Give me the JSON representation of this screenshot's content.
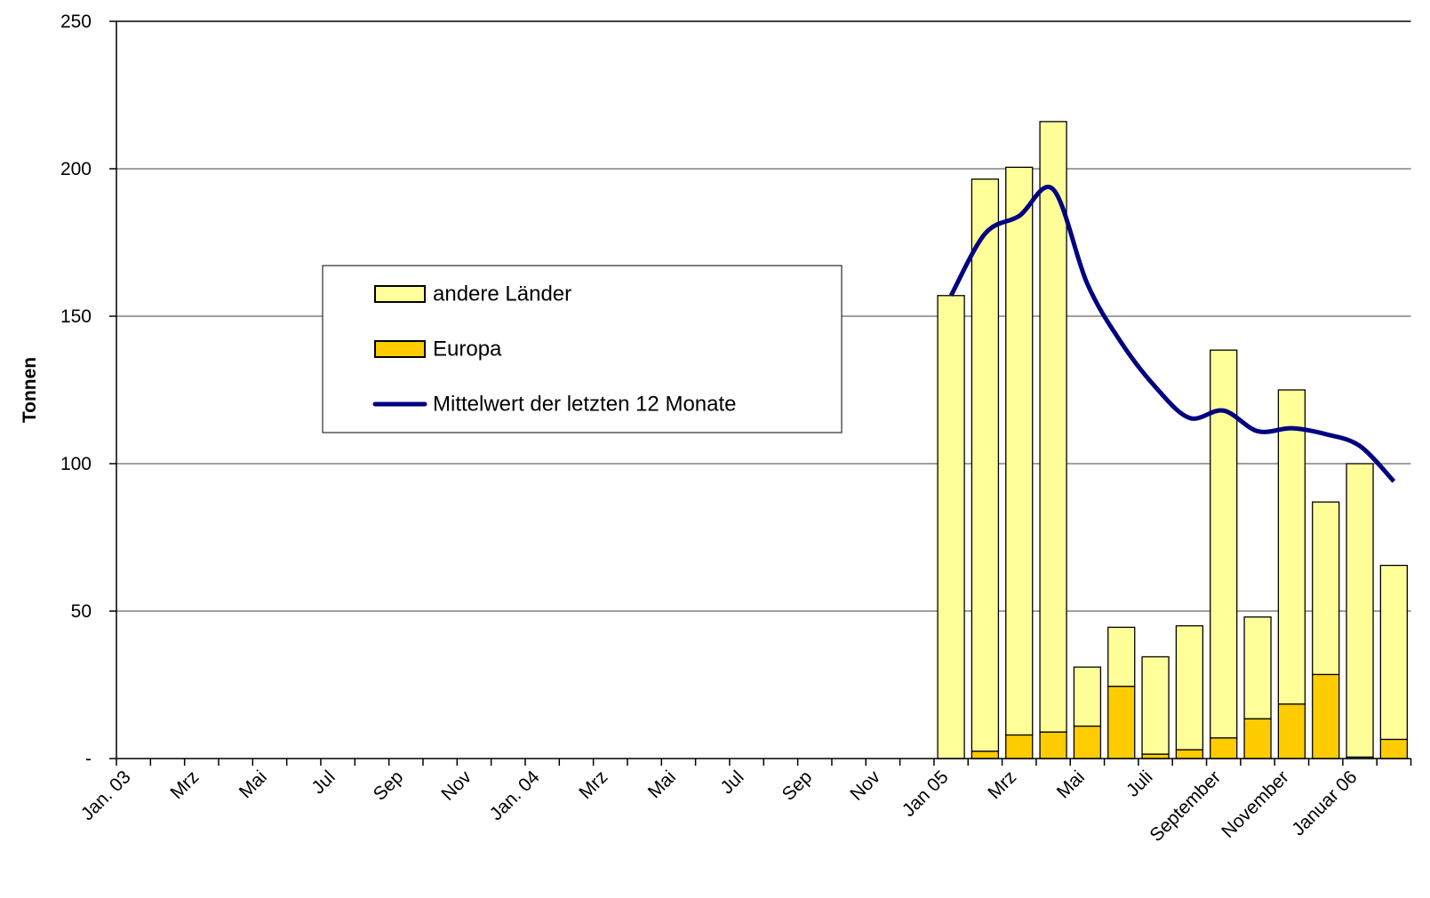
{
  "chart_data": {
    "type": "bar",
    "y_label": "Tonnen",
    "categories": [
      "Jan. 03",
      null,
      "Mrz",
      null,
      "Mai",
      null,
      "Jul",
      null,
      "Sep",
      null,
      "Nov",
      null,
      "Jan. 04",
      null,
      "Mrz",
      null,
      "Mai",
      null,
      "Jul",
      null,
      "Sep",
      null,
      "Nov",
      null,
      "Jan 05",
      null,
      "Mrz",
      null,
      "Mai",
      null,
      "Juli",
      null,
      "September",
      null,
      "November",
      null,
      "Januar 06",
      null
    ],
    "series": [
      {
        "name": "andere Länder",
        "type": "bar",
        "color": "#ffff99",
        "values": [
          null,
          null,
          null,
          null,
          null,
          null,
          null,
          null,
          null,
          null,
          null,
          null,
          null,
          null,
          null,
          null,
          null,
          null,
          null,
          null,
          null,
          null,
          null,
          null,
          157,
          194,
          192.5,
          207,
          20,
          20,
          33,
          42,
          131.5,
          34.5,
          106.5,
          58.5,
          99.5,
          59
        ]
      },
      {
        "name": "Europa",
        "type": "bar",
        "color": "#ffcc00",
        "values": [
          null,
          null,
          null,
          null,
          null,
          null,
          null,
          null,
          null,
          null,
          null,
          null,
          null,
          null,
          null,
          null,
          null,
          null,
          null,
          null,
          null,
          null,
          null,
          null,
          0,
          2.5,
          8,
          9,
          11,
          24.5,
          1.5,
          3,
          7,
          13.5,
          18.5,
          28.5,
          0.5,
          6.5
        ]
      },
      {
        "name": "Mittelwert der letzten 12 Monate",
        "type": "line",
        "color": "#000080",
        "values": [
          null,
          null,
          null,
          null,
          null,
          null,
          null,
          null,
          null,
          null,
          null,
          null,
          null,
          null,
          null,
          null,
          null,
          null,
          null,
          null,
          null,
          null,
          null,
          null,
          157,
          178,
          184,
          193,
          161,
          141,
          126,
          115.5,
          118,
          111,
          112,
          110,
          106,
          94
        ]
      }
    ],
    "ylim": [
      0,
      250
    ],
    "yticks": [
      {
        "value": 0,
        "label": "-"
      },
      50,
      100,
      150,
      200,
      250
    ],
    "grid": true
  }
}
